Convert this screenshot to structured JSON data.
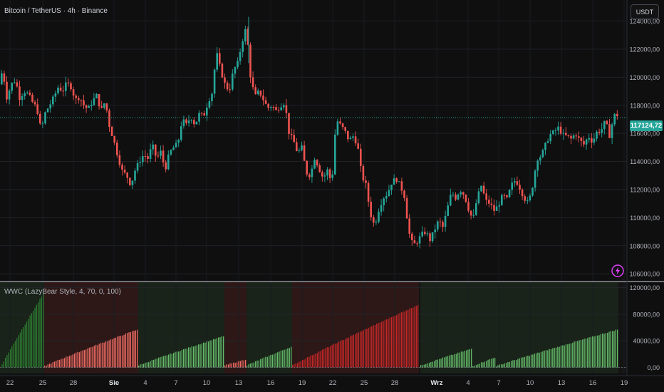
{
  "header": {
    "symbol_title": "Bitcoin / TetherUS · 4h · Binance",
    "currency_button": "USDT"
  },
  "indicator": {
    "label": "WWC (LazyBear Style, 4, 70, 0, 100)"
  },
  "price_tag": {
    "value": "117124,72"
  },
  "icons": {
    "alert": "lightning-icon"
  },
  "colors": {
    "background": "#0f0f0f",
    "up": "#26a69a",
    "down": "#ef5350",
    "histogram_green": "#4caf50",
    "histogram_red": "#e53935",
    "price_tag": "#26a69a"
  },
  "chart_data": [
    {
      "type": "candlestick",
      "title": "Bitcoin / TetherUS · 4h · Binance",
      "y_ticks": [
        "124000,00",
        "122000,00",
        "120000,00",
        "118000,00",
        "116000,00",
        "114000,00",
        "112000,00",
        "110000,00",
        "108000,00",
        "106000,00"
      ],
      "y_tick_values": [
        124000,
        122000,
        120000,
        118000,
        116000,
        114000,
        112000,
        110000,
        108000,
        106000
      ],
      "ylim": [
        105500,
        125500
      ],
      "last_price": 117124.72,
      "x_ticks": [
        "22",
        "25",
        "28",
        "Sie",
        "4",
        "7",
        "10",
        "13",
        "16",
        "19",
        "22",
        "25",
        "28",
        "Wrz",
        "4",
        "7",
        "10",
        "13",
        "16",
        "19"
      ],
      "price_path": [
        [
          0,
          119500
        ],
        [
          6,
          120500
        ],
        [
          12,
          118500
        ],
        [
          18,
          119500
        ],
        [
          24,
          119800
        ],
        [
          30,
          118500
        ],
        [
          36,
          119000
        ],
        [
          42,
          118800
        ],
        [
          48,
          118200
        ],
        [
          54,
          117800
        ],
        [
          60,
          116200
        ],
        [
          66,
          117500
        ],
        [
          72,
          118000
        ],
        [
          78,
          118600
        ],
        [
          84,
          119300
        ],
        [
          90,
          119000
        ],
        [
          96,
          119600
        ],
        [
          102,
          119300
        ],
        [
          108,
          118400
        ],
        [
          114,
          118600
        ],
        [
          120,
          118000
        ],
        [
          126,
          117700
        ],
        [
          132,
          118300
        ],
        [
          138,
          118700
        ],
        [
          144,
          117600
        ],
        [
          150,
          118300
        ],
        [
          156,
          116500
        ],
        [
          162,
          115500
        ],
        [
          168,
          114300
        ],
        [
          174,
          113300
        ],
        [
          180,
          113000
        ],
        [
          186,
          112300
        ],
        [
          192,
          113400
        ],
        [
          198,
          114000
        ],
        [
          204,
          114500
        ],
        [
          210,
          114200
        ],
        [
          216,
          115200
        ],
        [
          222,
          114200
        ],
        [
          228,
          114700
        ],
        [
          234,
          113400
        ],
        [
          240,
          114600
        ],
        [
          246,
          115000
        ],
        [
          252,
          115300
        ],
        [
          258,
          117000
        ],
        [
          264,
          116600
        ],
        [
          270,
          117200
        ],
        [
          276,
          116600
        ],
        [
          282,
          117400
        ],
        [
          288,
          117200
        ],
        [
          294,
          118200
        ],
        [
          300,
          118900
        ],
        [
          306,
          121800
        ],
        [
          312,
          120500
        ],
        [
          318,
          119500
        ],
        [
          324,
          119000
        ],
        [
          330,
          120500
        ],
        [
          336,
          121000
        ],
        [
          342,
          122500
        ],
        [
          348,
          123600
        ],
        [
          354,
          120000
        ],
        [
          360,
          118600
        ],
        [
          366,
          119000
        ],
        [
          372,
          118400
        ],
        [
          378,
          117800
        ],
        [
          384,
          118000
        ],
        [
          390,
          117600
        ],
        [
          396,
          118000
        ],
        [
          402,
          118200
        ],
        [
          408,
          116000
        ],
        [
          414,
          115500
        ],
        [
          420,
          114600
        ],
        [
          426,
          115000
        ],
        [
          432,
          113200
        ],
        [
          438,
          113000
        ],
        [
          444,
          114300
        ],
        [
          450,
          113500
        ],
        [
          456,
          112800
        ],
        [
          462,
          113400
        ],
        [
          468,
          112400
        ],
        [
          474,
          117000
        ],
        [
          480,
          116600
        ],
        [
          486,
          116200
        ],
        [
          492,
          115500
        ],
        [
          498,
          115800
        ],
        [
          504,
          115200
        ],
        [
          510,
          113000
        ],
        [
          516,
          112300
        ],
        [
          522,
          110300
        ],
        [
          528,
          109400
        ],
        [
          534,
          110600
        ],
        [
          540,
          111400
        ],
        [
          546,
          111700
        ],
        [
          552,
          112500
        ],
        [
          558,
          112800
        ],
        [
          564,
          112300
        ],
        [
          570,
          111500
        ],
        [
          576,
          109000
        ],
        [
          582,
          108000
        ],
        [
          588,
          108300
        ],
        [
          594,
          108800
        ],
        [
          600,
          109000
        ],
        [
          606,
          108400
        ],
        [
          612,
          109100
        ],
        [
          618,
          109800
        ],
        [
          624,
          109300
        ],
        [
          630,
          110600
        ],
        [
          636,
          111800
        ],
        [
          642,
          111400
        ],
        [
          648,
          112000
        ],
        [
          654,
          111600
        ],
        [
          660,
          110600
        ],
        [
          666,
          109800
        ],
        [
          672,
          111400
        ],
        [
          678,
          112300
        ],
        [
          684,
          111200
        ],
        [
          690,
          111000
        ],
        [
          696,
          110500
        ],
        [
          702,
          110900
        ],
        [
          708,
          111600
        ],
        [
          714,
          111300
        ],
        [
          720,
          112300
        ],
        [
          726,
          112700
        ],
        [
          732,
          112100
        ],
        [
          738,
          111400
        ],
        [
          744,
          111000
        ],
        [
          750,
          112300
        ],
        [
          756,
          114200
        ],
        [
          762,
          114400
        ],
        [
          768,
          115200
        ],
        [
          774,
          115900
        ],
        [
          780,
          116100
        ],
        [
          786,
          116400
        ],
        [
          792,
          115900
        ],
        [
          798,
          115800
        ],
        [
          804,
          115600
        ],
        [
          810,
          116000
        ],
        [
          816,
          115500
        ],
        [
          822,
          115200
        ],
        [
          828,
          115800
        ],
        [
          834,
          115400
        ],
        [
          840,
          116100
        ],
        [
          846,
          116200
        ],
        [
          852,
          116900
        ],
        [
          858,
          115800
        ],
        [
          864,
          117300
        ]
      ]
    },
    {
      "type": "bar",
      "title": "WWC (LazyBear Style, 4, 70, 0, 100)",
      "y_ticks": [
        "120000,00",
        "80000,00",
        "40000,00",
        "0,00"
      ],
      "y_tick_values": [
        120000,
        80000,
        40000,
        0
      ],
      "ylim": [
        -9000,
        128000
      ],
      "segments": [
        {
          "color": "green",
          "start": 0,
          "end": 110000,
          "x_from": 0,
          "x_to": 60
        },
        {
          "color": "red",
          "start": 2000,
          "end": 57000,
          "x_from": 62,
          "x_to": 192
        },
        {
          "color": "green",
          "start": 3000,
          "end": 47000,
          "x_from": 194,
          "x_to": 313
        },
        {
          "color": "red",
          "start": 3000,
          "end": 12000,
          "x_from": 315,
          "x_to": 344
        },
        {
          "color": "green",
          "start": 3000,
          "end": 31000,
          "x_from": 346,
          "x_to": 408
        },
        {
          "color": "red",
          "start": 3000,
          "end": 94000,
          "x_from": 410,
          "x_to": 586
        },
        {
          "color": "green",
          "start": 3000,
          "end": 28000,
          "x_from": 590,
          "x_to": 661
        },
        {
          "color": "green",
          "start": 2000,
          "end": 15000,
          "x_from": 663,
          "x_to": 694
        },
        {
          "color": "green",
          "start": 2000,
          "end": 57000,
          "x_from": 696,
          "x_to": 866
        }
      ]
    }
  ]
}
